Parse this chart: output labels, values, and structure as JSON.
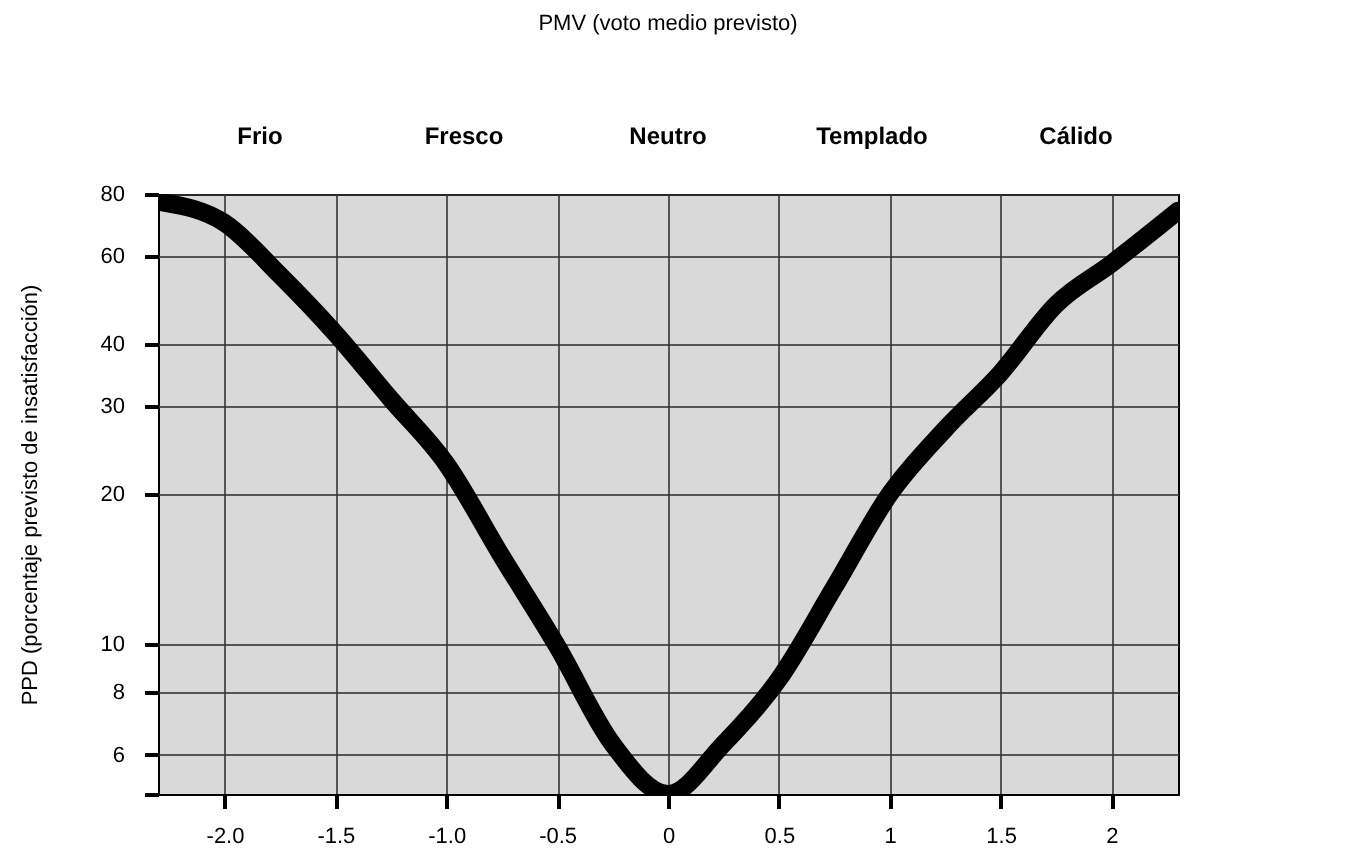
{
  "chart_data": {
    "type": "line",
    "title": "PMV (voto medio previsto)",
    "ylabel": "PPD (porcentaje previsto de insatisfacción)",
    "x": [
      -2.28,
      -2,
      -1.75,
      -1.5,
      -1.25,
      -1,
      -0.75,
      -0.5,
      -0.25,
      0,
      0.25,
      0.5,
      0.75,
      1,
      1.25,
      1.5,
      1.75,
      2,
      2.3
    ],
    "series": [
      {
        "color": "#000000",
        "values": [
          77,
          70,
          55,
          42,
          31,
          23,
          15,
          9.9,
          6.3,
          5,
          6.3,
          8.5,
          13,
          20,
          27,
          35,
          48,
          58,
          74
        ]
      }
    ],
    "xlim": [
      -2.3,
      2.3
    ],
    "xticks": [
      {
        "value": -2,
        "label": "-2.0"
      },
      {
        "value": -1.5,
        "label": "-1.5"
      },
      {
        "value": -1,
        "label": "-1.0"
      },
      {
        "value": -0.5,
        "label": "-0.5"
      },
      0,
      0.5,
      1,
      1.5,
      2
    ],
    "ylim": [
      5,
      80
    ],
    "log": "y",
    "yticks": [
      {
        "value": 5,
        "label": null
      },
      6,
      8,
      10,
      20,
      30,
      40,
      60,
      80
    ],
    "annotations": [
      "Frio",
      "Fresco",
      "Neutro",
      "Templado",
      "Cálido"
    ],
    "grid": true,
    "line_style": "solid",
    "legend": false
  }
}
